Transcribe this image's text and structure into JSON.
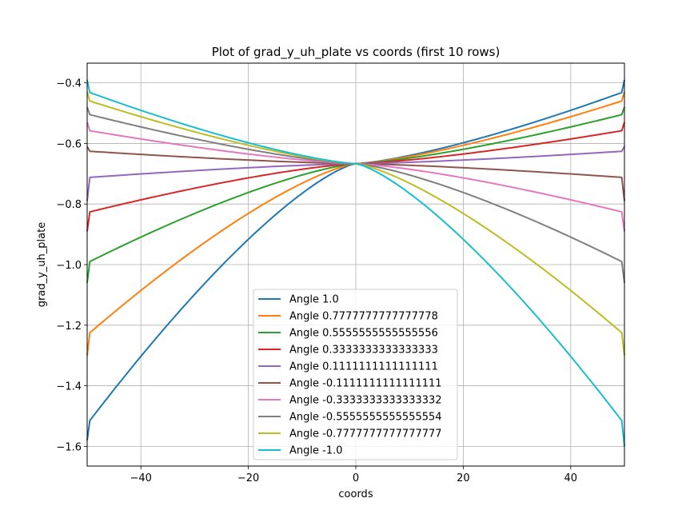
{
  "chart_data": {
    "type": "line",
    "title": "Plot of grad_y_uh_plate vs coords (first 10 rows)",
    "xlabel": "coords",
    "ylabel": "grad_y_uh_plate",
    "xlim": [
      -50,
      50
    ],
    "ylim": [
      -1.665,
      -0.335
    ],
    "xticks": [
      -40,
      -20,
      0,
      20,
      40
    ],
    "xtick_labels": [
      "−40",
      "−20",
      "0",
      "20",
      "40"
    ],
    "yticks": [
      -1.6,
      -1.4,
      -1.2,
      -1.0,
      -0.8,
      -0.6,
      -0.4
    ],
    "ytick_labels": [
      "−1.6",
      "−1.4",
      "−1.2",
      "−1.0",
      "−0.8",
      "−0.6",
      "−0.4"
    ],
    "grid": true,
    "legend_position": "lower center",
    "center_value": -0.667,
    "x_edge_start": -49.5,
    "x_edge_end": 49.5,
    "series": [
      {
        "name": "Angle 1.0",
        "color": "#1f77b4",
        "left": -1.515,
        "right": -0.432,
        "left_spike": -1.58,
        "right_spike": -0.39
      },
      {
        "name": "Angle 0.7777777777777778",
        "color": "#ff7f0e",
        "left": -1.225,
        "right": -0.46,
        "left_spike": -1.3,
        "right_spike": -0.43
      },
      {
        "name": "Angle 0.5555555555555556",
        "color": "#2ca02c",
        "left": -0.99,
        "right": -0.505,
        "left_spike": -1.06,
        "right_spike": -0.48
      },
      {
        "name": "Angle 0.3333333333333333",
        "color": "#d62728",
        "left": -0.826,
        "right": -0.558,
        "left_spike": -0.89,
        "right_spike": -0.53
      },
      {
        "name": "Angle 0.1111111111111111",
        "color": "#9467bd",
        "left": -0.712,
        "right": -0.626,
        "left_spike": -0.79,
        "right_spike": -0.61
      },
      {
        "name": "Angle -0.1111111111111111",
        "color": "#8c564b",
        "left": -0.626,
        "right": -0.712,
        "left_spike": -0.61,
        "right_spike": -0.79
      },
      {
        "name": "Angle -0.3333333333333332",
        "color": "#e377c2",
        "left": -0.558,
        "right": -0.826,
        "left_spike": -0.53,
        "right_spike": -0.89
      },
      {
        "name": "Angle -0.5555555555555554",
        "color": "#7f7f7f",
        "left": -0.505,
        "right": -0.99,
        "left_spike": -0.48,
        "right_spike": -1.06
      },
      {
        "name": "Angle -0.7777777777777777",
        "color": "#bcbd22",
        "left": -0.46,
        "right": -1.225,
        "left_spike": -0.43,
        "right_spike": -1.3
      },
      {
        "name": "Angle -1.0",
        "color": "#17becf",
        "left": -0.432,
        "right": -1.515,
        "left_spike": -0.39,
        "right_spike": -1.6
      }
    ]
  }
}
